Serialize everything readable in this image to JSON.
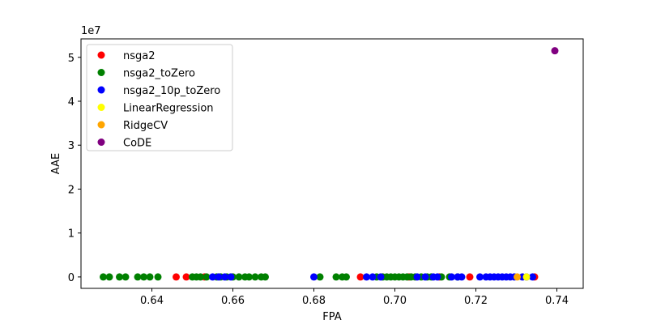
{
  "chart_data": {
    "type": "scatter",
    "xlabel": "FPA",
    "ylabel": "AAE",
    "offset_text": "1e7",
    "xlim": [
      0.6225,
      0.7465
    ],
    "ylim": [
      -2600000,
      54200000
    ],
    "y_scale_factor": 10000000,
    "x_ticks": [
      0.64,
      0.66,
      0.68,
      0.7,
      0.72,
      0.74
    ],
    "x_tick_labels": [
      "0.64",
      "0.66",
      "0.68",
      "0.70",
      "0.72",
      "0.74"
    ],
    "y_ticks": [
      0,
      10000000,
      20000000,
      30000000,
      40000000,
      50000000
    ],
    "y_tick_labels": [
      "0",
      "1",
      "2",
      "3",
      "4",
      "5"
    ],
    "grid": false,
    "legend_position": "top-left",
    "series": [
      {
        "name": "nsga2",
        "color": "#ff0000",
        "points": [
          [
            0.646,
            0
          ],
          [
            0.6485,
            0
          ],
          [
            0.653,
            0
          ],
          [
            0.6915,
            0
          ],
          [
            0.7035,
            0
          ],
          [
            0.711,
            0
          ],
          [
            0.7185,
            0
          ],
          [
            0.7345,
            0
          ]
        ]
      },
      {
        "name": "nsga2_toZero",
        "color": "#008000",
        "points": [
          [
            0.628,
            0
          ],
          [
            0.6295,
            0
          ],
          [
            0.632,
            0
          ],
          [
            0.6335,
            0
          ],
          [
            0.6365,
            0
          ],
          [
            0.638,
            0
          ],
          [
            0.6395,
            0
          ],
          [
            0.6415,
            0
          ],
          [
            0.65,
            0
          ],
          [
            0.651,
            0
          ],
          [
            0.652,
            0
          ],
          [
            0.6535,
            0
          ],
          [
            0.656,
            0
          ],
          [
            0.657,
            0
          ],
          [
            0.6585,
            0
          ],
          [
            0.66,
            0
          ],
          [
            0.6615,
            0
          ],
          [
            0.663,
            0
          ],
          [
            0.664,
            0
          ],
          [
            0.6655,
            0
          ],
          [
            0.667,
            0
          ],
          [
            0.668,
            0
          ],
          [
            0.6815,
            0
          ],
          [
            0.6855,
            0
          ],
          [
            0.687,
            0
          ],
          [
            0.688,
            0
          ],
          [
            0.6955,
            0
          ],
          [
            0.697,
            0
          ],
          [
            0.698,
            0
          ],
          [
            0.699,
            0
          ],
          [
            0.7,
            0
          ],
          [
            0.701,
            0
          ],
          [
            0.702,
            0
          ],
          [
            0.703,
            0
          ],
          [
            0.704,
            0
          ],
          [
            0.705,
            0
          ],
          [
            0.7065,
            0
          ],
          [
            0.708,
            0
          ],
          [
            0.709,
            0
          ],
          [
            0.7115,
            0
          ],
          [
            0.7135,
            0
          ],
          [
            0.7155,
            0
          ]
        ]
      },
      {
        "name": "nsga2_10p_toZero",
        "color": "#0000ff",
        "points": [
          [
            0.655,
            0
          ],
          [
            0.6565,
            0
          ],
          [
            0.658,
            0
          ],
          [
            0.6595,
            0
          ],
          [
            0.68,
            0
          ],
          [
            0.693,
            0
          ],
          [
            0.6945,
            0
          ],
          [
            0.6965,
            0
          ],
          [
            0.7055,
            0
          ],
          [
            0.7075,
            0
          ],
          [
            0.7095,
            0
          ],
          [
            0.7105,
            0
          ],
          [
            0.714,
            0
          ],
          [
            0.7155,
            0
          ],
          [
            0.7165,
            0
          ],
          [
            0.721,
            0
          ],
          [
            0.7225,
            0
          ],
          [
            0.7235,
            0
          ],
          [
            0.7245,
            0
          ],
          [
            0.7255,
            0
          ],
          [
            0.7265,
            0
          ],
          [
            0.7275,
            0
          ],
          [
            0.7285,
            0
          ],
          [
            0.7295,
            0
          ],
          [
            0.7315,
            0
          ],
          [
            0.7325,
            0
          ],
          [
            0.734,
            0
          ]
        ]
      },
      {
        "name": "LinearRegression",
        "color": "#ffff00",
        "points": [
          [
            0.7325,
            0
          ]
        ]
      },
      {
        "name": "RidgeCV",
        "color": "#ffa500",
        "points": [
          [
            0.7302,
            0
          ]
        ]
      },
      {
        "name": "CoDE",
        "color": "#800080",
        "points": [
          [
            0.7395,
            51500000
          ]
        ]
      }
    ]
  }
}
